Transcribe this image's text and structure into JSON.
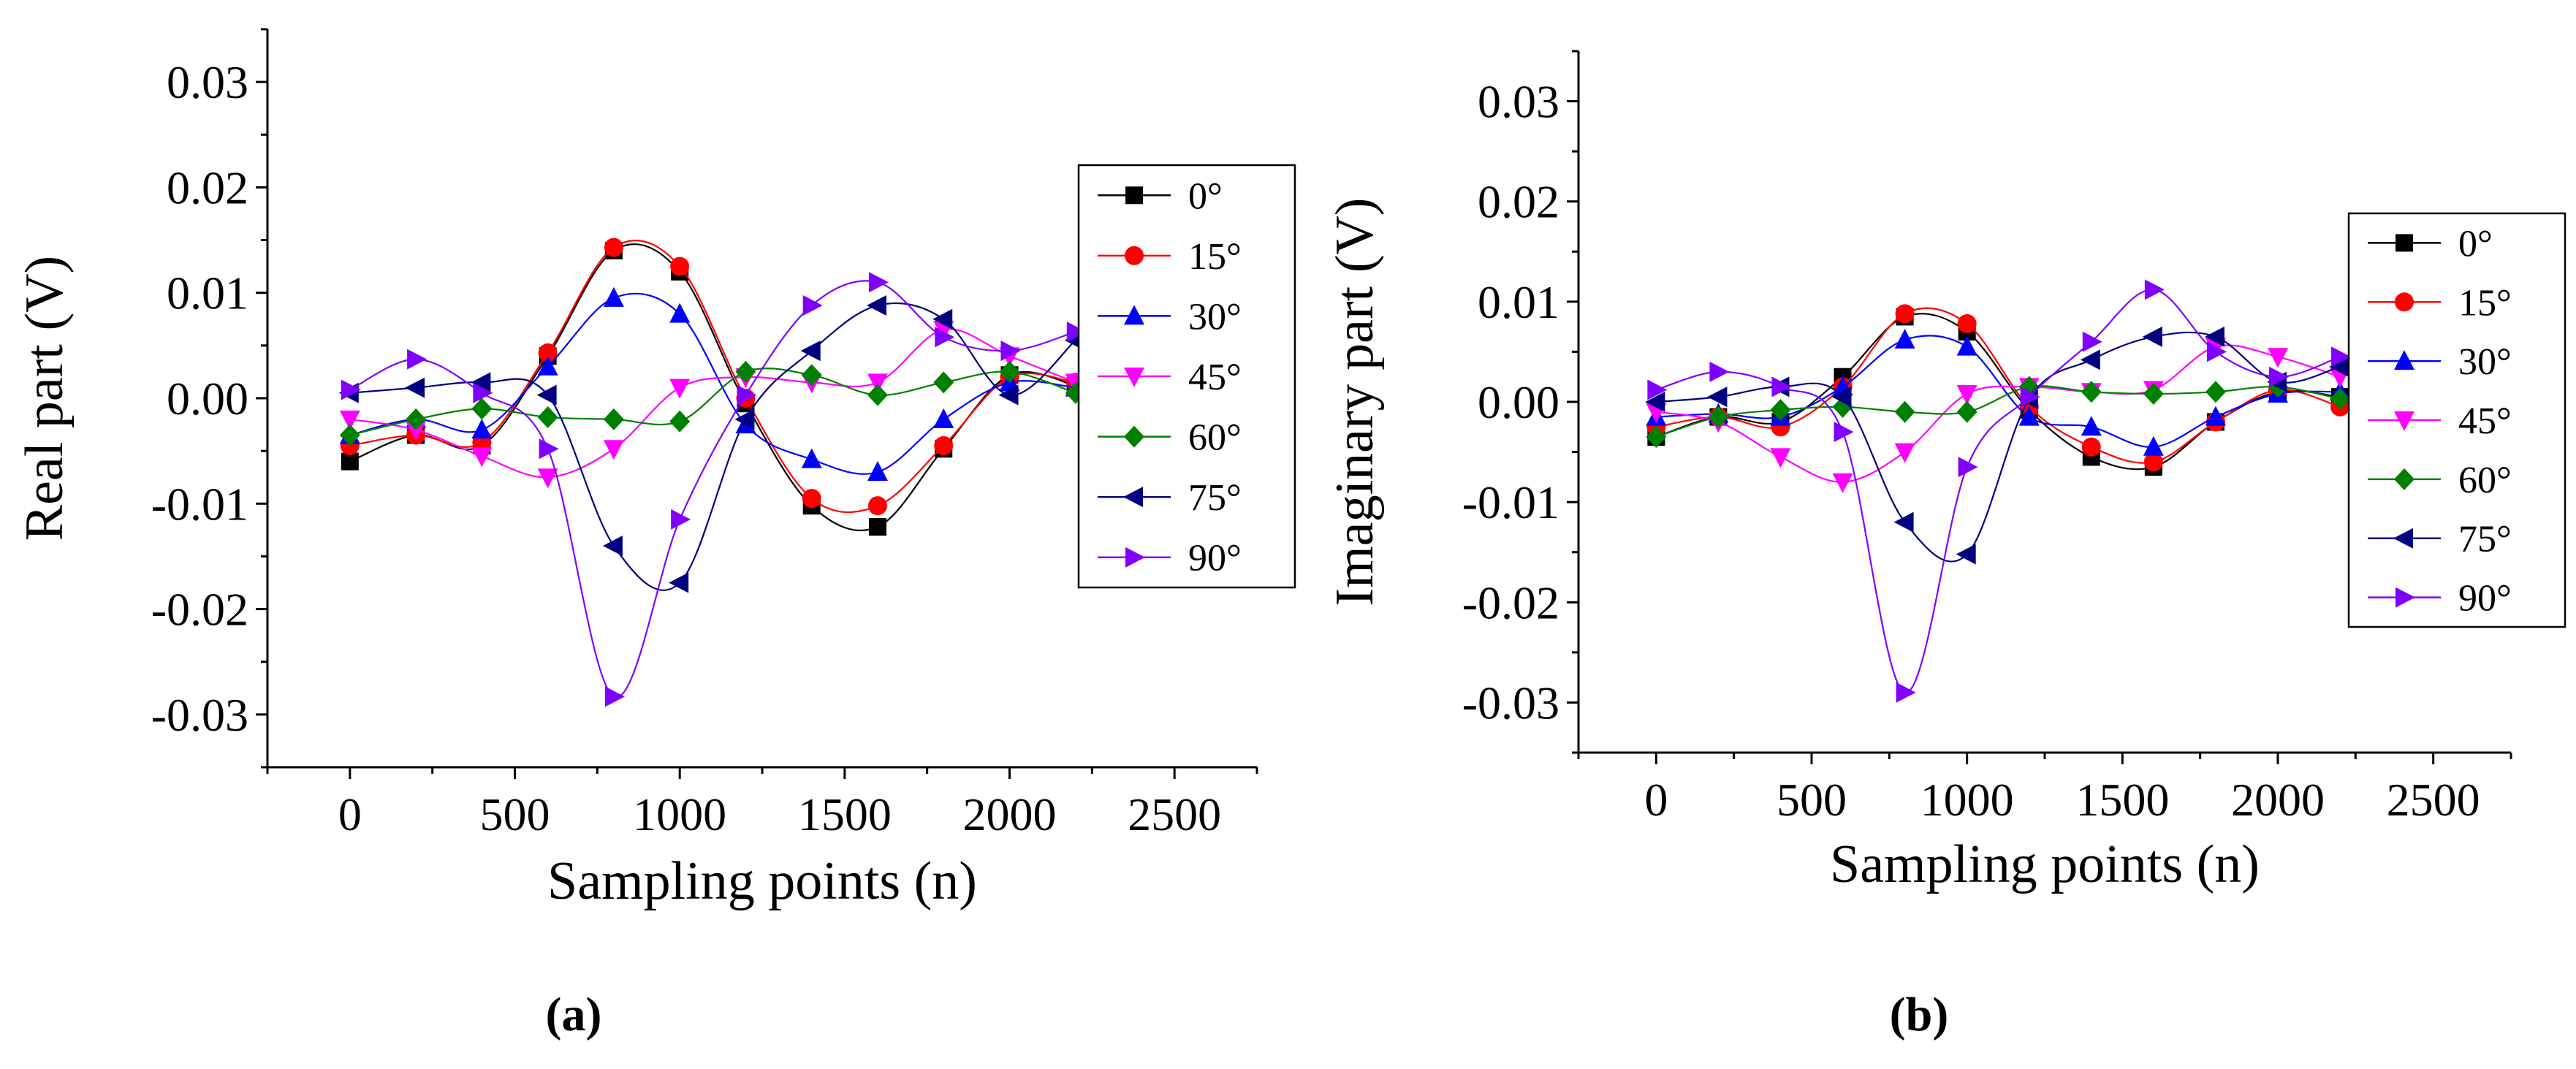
{
  "chart_data": [
    {
      "type": "line",
      "panel_label": "(a)",
      "xlabel": "Sampling points (n)",
      "ylabel": "Real part (V)",
      "xlim": [
        -250,
        2750
      ],
      "ylim": [
        -0.035,
        0.035
      ],
      "xticks": [
        0,
        500,
        1000,
        1500,
        2000,
        2500
      ],
      "yticks": [
        -0.03,
        -0.02,
        -0.01,
        0.0,
        0.01,
        0.02,
        0.03
      ],
      "xticklabels": [
        "0",
        "500",
        "1000",
        "1500",
        "2000",
        "2500"
      ],
      "yticklabels": [
        "-0.03",
        "-0.02",
        "-0.01",
        "0.00",
        "0.01",
        "0.02",
        "0.03"
      ],
      "legend_position": "right",
      "x": [
        0,
        200,
        400,
        600,
        800,
        1000,
        1200,
        1400,
        1600,
        1800,
        2000,
        2200
      ],
      "series": [
        {
          "name": "0°",
          "color": "#000000",
          "marker": "square",
          "values": [
            -0.006,
            -0.0035,
            -0.0045,
            0.004,
            0.014,
            0.012,
            -0.0005,
            -0.0102,
            -0.0122,
            -0.0048,
            0.0022,
            0.0012
          ]
        },
        {
          "name": "15°",
          "color": "#ff0000",
          "marker": "circle",
          "values": [
            -0.0045,
            -0.0035,
            -0.0042,
            0.0043,
            0.0143,
            0.0125,
            0.0,
            -0.0095,
            -0.0102,
            -0.0045,
            0.002,
            0.0015
          ]
        },
        {
          "name": "30°",
          "color": "#0000ff",
          "marker": "triangle-up",
          "values": [
            -0.0035,
            -0.002,
            -0.003,
            0.003,
            0.0095,
            0.008,
            -0.0025,
            -0.0058,
            -0.007,
            -0.002,
            0.0015,
            0.001
          ]
        },
        {
          "name": "45°",
          "color": "#ff00ff",
          "marker": "triangle-down",
          "values": [
            -0.002,
            -0.003,
            -0.0055,
            -0.0075,
            -0.0048,
            0.001,
            0.002,
            0.0015,
            0.0015,
            0.0065,
            0.004,
            0.0015
          ]
        },
        {
          "name": "60°",
          "color": "#008000",
          "marker": "diamond",
          "values": [
            -0.0035,
            -0.002,
            -0.001,
            -0.0018,
            -0.002,
            -0.0022,
            0.0025,
            0.0022,
            0.0003,
            0.0015,
            0.0025,
            0.0005
          ]
        },
        {
          "name": "75°",
          "color": "#000080",
          "marker": "triangle-left",
          "values": [
            0.0005,
            0.001,
            0.0015,
            0.0003,
            -0.014,
            -0.0175,
            -0.002,
            0.0045,
            0.0088,
            0.0075,
            0.0003,
            0.0055
          ]
        },
        {
          "name": "90°",
          "color": "#8000ff",
          "marker": "triangle-right",
          "values": [
            0.0008,
            0.0037,
            0.0005,
            -0.0048,
            -0.0283,
            -0.0115,
            0.0003,
            0.0088,
            0.011,
            0.0058,
            0.0045,
            0.0063
          ]
        }
      ]
    },
    {
      "type": "line",
      "panel_label": "(b)",
      "xlabel": "Sampling points (n)",
      "ylabel": "Imaginary part (V)",
      "xlim": [
        -250,
        2750
      ],
      "ylim": [
        -0.035,
        0.035
      ],
      "xticks": [
        0,
        500,
        1000,
        1500,
        2000,
        2500
      ],
      "yticks": [
        -0.03,
        -0.02,
        -0.01,
        0.0,
        0.01,
        0.02,
        0.03
      ],
      "xticklabels": [
        "0",
        "500",
        "1000",
        "1500",
        "2000",
        "2500"
      ],
      "yticklabels": [
        "-0.03",
        "-0.02",
        "-0.01",
        "0.00",
        "0.01",
        "0.02",
        "0.03"
      ],
      "legend_position": "right",
      "x": [
        0,
        200,
        400,
        600,
        800,
        1000,
        1200,
        1400,
        1600,
        1800,
        2000,
        2200
      ],
      "series": [
        {
          "name": "0°",
          "color": "#000000",
          "marker": "square",
          "values": [
            -0.0035,
            -0.0015,
            -0.002,
            0.0025,
            0.0085,
            0.007,
            -0.0008,
            -0.0055,
            -0.0065,
            -0.002,
            0.001,
            0.0005
          ]
        },
        {
          "name": "15°",
          "color": "#ff0000",
          "marker": "circle",
          "values": [
            -0.0025,
            -0.0015,
            -0.0025,
            0.0015,
            0.0088,
            0.0078,
            -0.0005,
            -0.0045,
            -0.006,
            -0.002,
            0.0012,
            -0.0005
          ]
        },
        {
          "name": "30°",
          "color": "#0000ff",
          "marker": "triangle-up",
          "values": [
            -0.0015,
            -0.0012,
            -0.0015,
            0.0015,
            0.0062,
            0.0055,
            -0.0015,
            -0.0025,
            -0.0045,
            -0.0015,
            0.0008,
            0.001
          ]
        },
        {
          "name": "45°",
          "color": "#ff00ff",
          "marker": "triangle-down",
          "values": [
            -0.001,
            -0.002,
            -0.0055,
            -0.008,
            -0.005,
            0.0008,
            0.0015,
            0.001,
            0.0012,
            0.0055,
            0.0045,
            0.0025
          ]
        },
        {
          "name": "60°",
          "color": "#008000",
          "marker": "diamond",
          "values": [
            -0.0035,
            -0.0015,
            -0.0008,
            -0.0005,
            -0.001,
            -0.001,
            0.0015,
            0.001,
            0.0008,
            0.001,
            0.0015,
            0.0003
          ]
        },
        {
          "name": "75°",
          "color": "#000080",
          "marker": "triangle-left",
          "values": [
            0.0,
            0.0005,
            0.0015,
            0.0005,
            -0.012,
            -0.0152,
            0.0003,
            0.0042,
            0.0065,
            0.0065,
            0.002,
            0.0035
          ]
        },
        {
          "name": "90°",
          "color": "#8000ff",
          "marker": "triangle-right",
          "values": [
            0.0012,
            0.003,
            0.0015,
            -0.003,
            -0.029,
            -0.0065,
            0.0005,
            0.006,
            0.0112,
            0.005,
            0.0025,
            0.0045
          ]
        }
      ]
    }
  ]
}
